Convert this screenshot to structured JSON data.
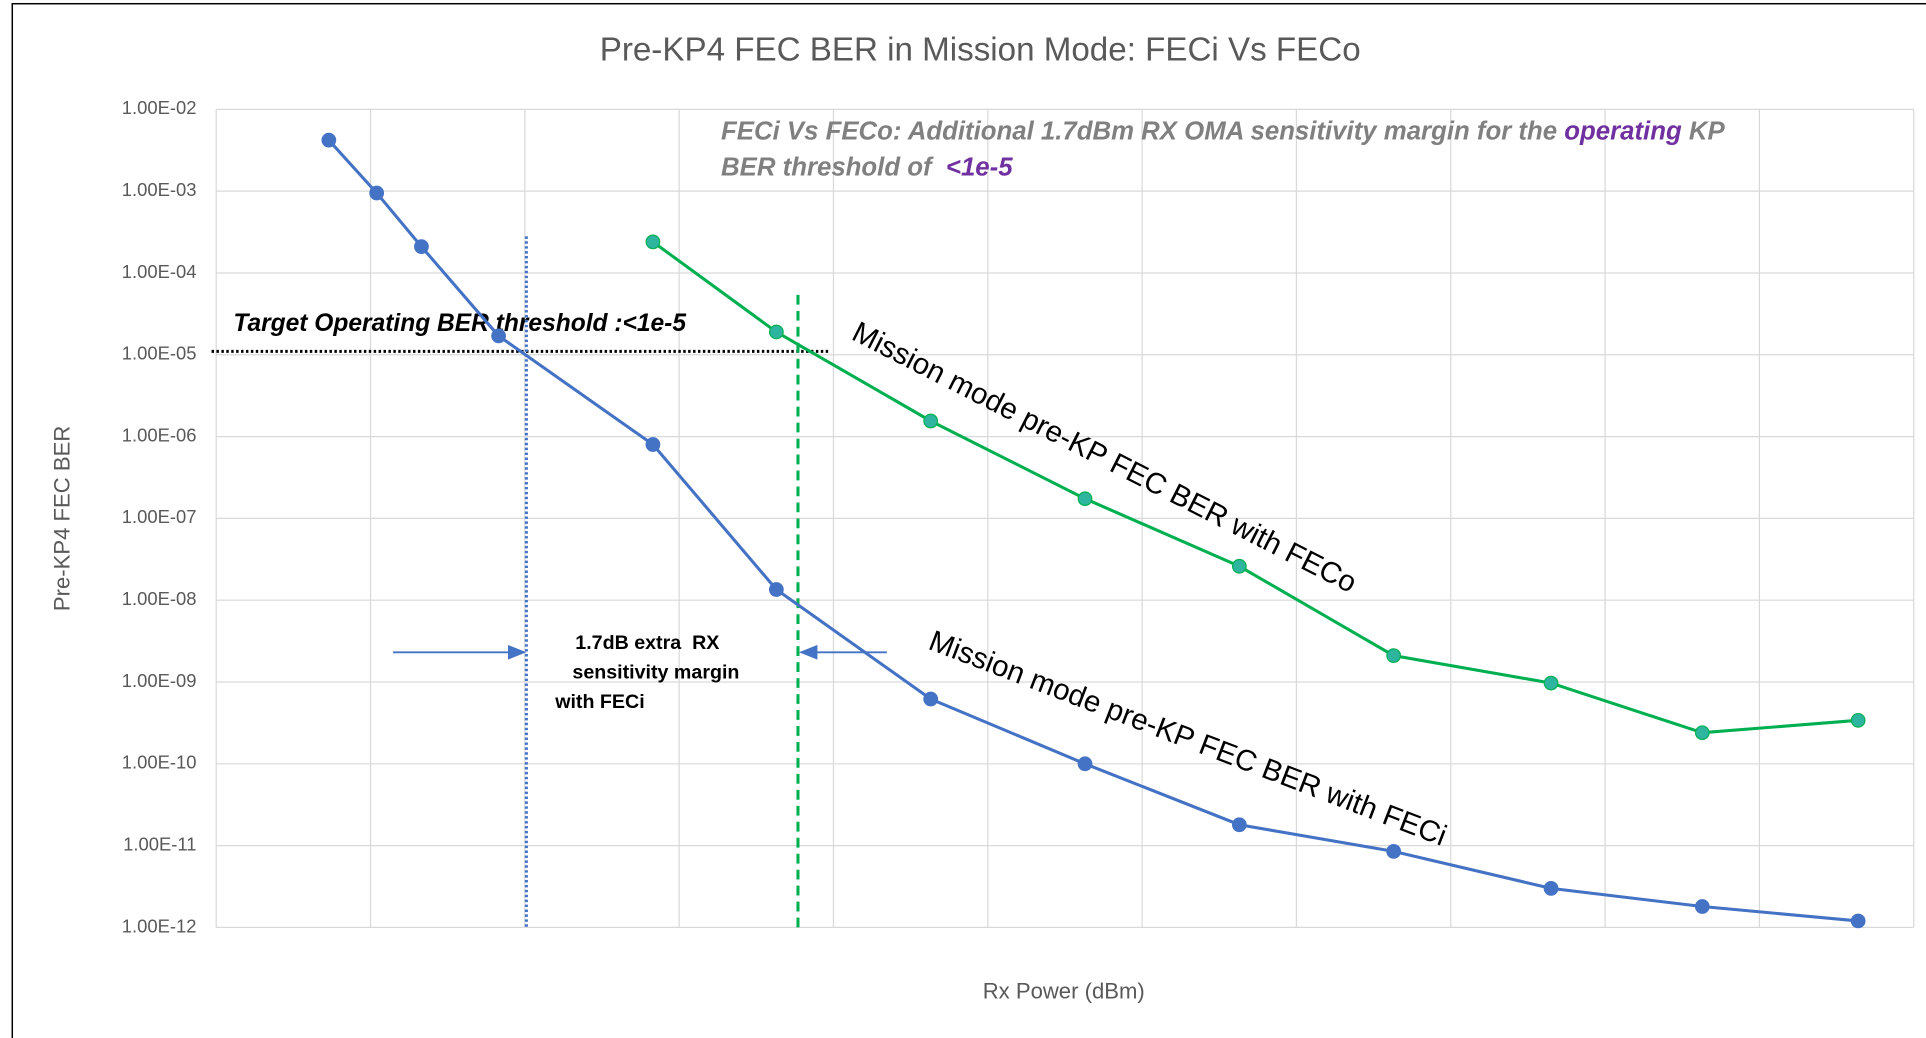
{
  "chart_data": {
    "type": "line",
    "title": "Pre-KP4 FEC BER in Mission Mode: FECi Vs FECo",
    "x_label": "Rx Power (dBm)",
    "y_label": "Pre-KP4 FEC BER",
    "log_y": true,
    "grid": true,
    "xtick_labels": false,
    "xlim": [
      0,
      11
    ],
    "xticks": [
      0,
      1,
      2,
      3,
      4,
      5,
      6,
      7,
      8,
      9,
      10,
      11
    ],
    "ylim": [
      1e-12,
      0.01
    ],
    "yticks": [
      {
        "value": 1e-12,
        "label": "1.00E-12"
      },
      {
        "value": 1e-11,
        "label": "1.00E-11"
      },
      {
        "value": 1e-10,
        "label": "1.00E-10"
      },
      {
        "value": 1e-09,
        "label": "1.00E-09"
      },
      {
        "value": 1e-08,
        "label": "1.00E-08"
      },
      {
        "value": 1e-07,
        "label": "1.00E-07"
      },
      {
        "value": 1e-06,
        "label": "1.00E-06"
      },
      {
        "value": 1e-05,
        "label": "1.00E-05"
      },
      {
        "value": 0.0001,
        "label": "1.00E-04"
      },
      {
        "value": 0.001,
        "label": "1.00E-03"
      },
      {
        "value": 0.01,
        "label": "1.00E-02"
      }
    ],
    "series": [
      {
        "name": "Mission mode pre-KP FEC BER with FECi",
        "color": "#4472c4",
        "marker_color": "#4472c4",
        "x": [
          0.73,
          1.04,
          1.33,
          1.83,
          2.83,
          3.63,
          4.63,
          5.63,
          6.63,
          7.63,
          8.65,
          9.63,
          10.64
        ],
        "values": [
          0.0042,
          0.00095,
          0.00021,
          1.7e-05,
          8e-07,
          1.35e-08,
          6.2e-10,
          1e-10,
          1.8e-11,
          8.5e-12,
          3e-12,
          1.8e-12,
          1.2e-12
        ]
      },
      {
        "name": "Mission mode pre-KP FEC BER with FECo",
        "color": "#00b050",
        "marker_color": "#2eb5a0",
        "x": [
          2.83,
          3.63,
          4.63,
          5.63,
          6.63,
          7.63,
          8.65,
          9.63,
          10.64
        ],
        "values": [
          0.00024,
          1.9e-05,
          1.55e-06,
          1.74e-07,
          2.6e-08,
          2.1e-09,
          9.7e-10,
          2.4e-10,
          3.4e-10
        ]
      }
    ],
    "reference_lines": [
      {
        "orientation": "horizontal",
        "y": 1.1e-05,
        "x_range": [
          -0.03,
          3.97
        ],
        "color": "#000000",
        "style": "dotted"
      },
      {
        "orientation": "vertical",
        "x": 2.01,
        "y_range": [
          0.00028,
          1e-12
        ],
        "color": "#4472c4",
        "style": "dotted"
      },
      {
        "orientation": "vertical",
        "x": 3.77,
        "y_range": [
          5.4e-05,
          1e-12
        ],
        "color": "#00b050",
        "style": "dashed"
      }
    ],
    "annotations": {
      "headline": [
        "FECi Vs FECo: Additional 1.7dBm RX OMA sensitivity margin for the ",
        "operating",
        " KP",
        "BER threshold of  ",
        "<1e-5"
      ],
      "threshold": "Target Operating BER threshold :<1e-5",
      "margin": [
        "1.7dB extra  RX",
        "sensitivity margin",
        "with FECi"
      ]
    }
  }
}
